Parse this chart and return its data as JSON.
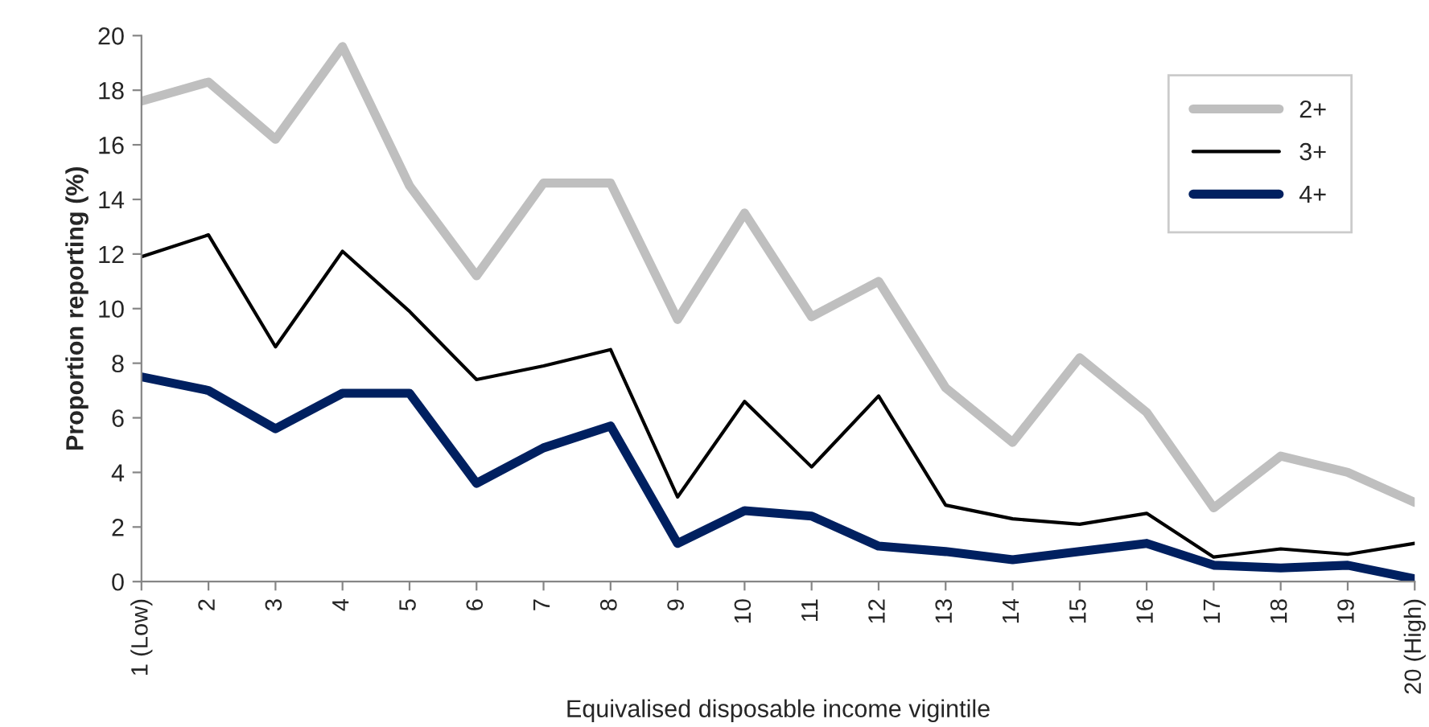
{
  "chart_data": {
    "type": "line",
    "xlabel": "Equivalised disposable income vigintile",
    "ylabel": "Proportion reporting (%)",
    "categories": [
      "1 (Low)",
      "2",
      "3",
      "4",
      "5",
      "6",
      "7",
      "8",
      "9",
      "10",
      "11",
      "12",
      "13",
      "14",
      "15",
      "16",
      "17",
      "18",
      "19",
      "20 (High)"
    ],
    "series": [
      {
        "name": "2+",
        "color": "#bfbfbf",
        "values": [
          17.6,
          18.3,
          16.2,
          19.6,
          14.5,
          11.2,
          14.6,
          14.6,
          9.6,
          13.5,
          9.7,
          11.0,
          7.1,
          5.1,
          8.2,
          6.2,
          2.7,
          4.6,
          4.0,
          2.9
        ]
      },
      {
        "name": "3+",
        "color": "#000000",
        "values": [
          11.9,
          12.7,
          8.6,
          12.1,
          9.9,
          7.4,
          7.9,
          8.5,
          3.1,
          6.6,
          4.2,
          6.8,
          2.8,
          2.3,
          2.1,
          2.5,
          0.9,
          1.2,
          1.0,
          1.4
        ]
      },
      {
        "name": "4+",
        "color": "#002060",
        "values": [
          7.5,
          7.0,
          5.6,
          6.9,
          6.9,
          3.6,
          4.9,
          5.7,
          1.4,
          2.6,
          2.4,
          1.3,
          1.1,
          0.8,
          1.1,
          1.4,
          0.6,
          0.5,
          0.6,
          0.1
        ]
      }
    ],
    "ylim": [
      0,
      20
    ],
    "yticks": [
      0,
      2,
      4,
      6,
      8,
      10,
      12,
      14,
      16,
      18,
      20
    ],
    "grid": false,
    "legend": "top right",
    "marker": "none",
    "line_style": "solid"
  }
}
